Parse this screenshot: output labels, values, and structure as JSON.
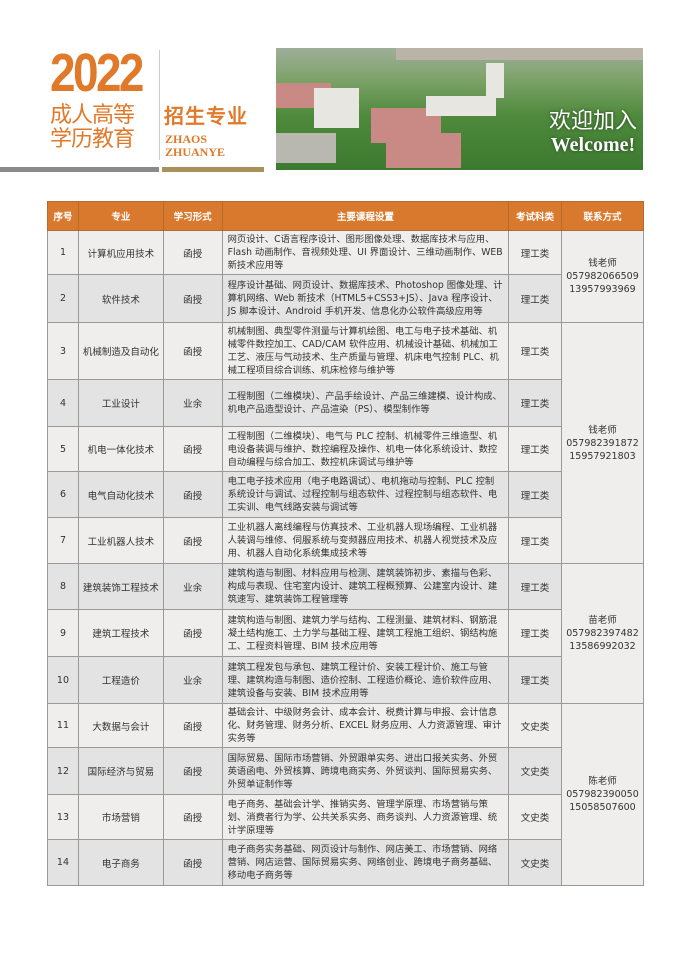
{
  "header": {
    "year": "2022",
    "title_line1": "成人高等",
    "title_line2": "学历教育",
    "subtitle": "招生专业",
    "pinyin_line1": "ZHAOS",
    "pinyin_line2": "ZHUANYE",
    "welcome_cn": "欢迎加入",
    "welcome_en": "Welcome!"
  },
  "colors": {
    "accent": "#d9792e",
    "title": "#e07a2a",
    "bar_gray": "#8a8a8a",
    "bar_gold": "#a8925a"
  },
  "table": {
    "headers": [
      "序号",
      "专业",
      "学习形式",
      "主要课程设置",
      "考试科类",
      "联系方式"
    ],
    "rows": [
      {
        "no": "1",
        "major": "计算机应用技术",
        "mode": "函授",
        "courses": "网页设计、C语言程序设计、图形图像处理、数据库技术与应用、Flash 动画制作、音视频处理、UI 界面设计、三维动画制作、WEB 新技术应用等",
        "category": "理工类"
      },
      {
        "no": "2",
        "major": "软件技术",
        "mode": "函授",
        "courses": "程序设计基础、网页设计、数据库技术、Photoshop 图像处理、计算机网络、Web 新技术（HTML5+CSS3+JS）、Java 程序设计、JS 脚本设计、Android 手机开发、信息化办公软件高级应用等",
        "category": "理工类"
      },
      {
        "no": "3",
        "major": "机械制造及自动化",
        "mode": "函授",
        "courses": "机械制图、典型零件测量与计算机绘图、电工与电子技术基础、机械零件数控加工、CAD/CAM 软件应用、机械设计基础、机械加工工艺、液压与气动技术、生产质量与管理、机床电气控制 PLC、机械工程项目综合训练、机床检修与维护等",
        "category": "理工类"
      },
      {
        "no": "4",
        "major": "工业设计",
        "mode": "业余",
        "courses": "工程制图（二维模块）、产品手绘设计、产品三维建模、设计构成、机电产品造型设计、产品渲染（PS）、模型制作等",
        "category": "理工类"
      },
      {
        "no": "5",
        "major": "机电一体化技术",
        "mode": "函授",
        "courses": "工程制图（二维模块）、电气与 PLC 控制、机械零件三维造型、机电设备装调与维护、数控编程及操作、机电一体化系统设计、数控自动编程与综合加工、数控机床调试与维护等",
        "category": "理工类"
      },
      {
        "no": "6",
        "major": "电气自动化技术",
        "mode": "函授",
        "courses": "电工电子技术应用（电子电路调试）、电机拖动与控制、PLC 控制系统设计与调试、过程控制与组态软件、过程控制与组态软件、电工实训、电气线路安装与调试等",
        "category": "理工类"
      },
      {
        "no": "7",
        "major": "工业机器人技术",
        "mode": "函授",
        "courses": "工业机器人离线编程与仿真技术、工业机器人现场编程、工业机器人装调与维修、伺服系统与变频器应用技术、机器人视觉技术及应用、机器人自动化系统集成技术等",
        "category": "理工类"
      },
      {
        "no": "8",
        "major": "建筑装饰工程技术",
        "mode": "业余",
        "courses": "建筑构造与制图、材料应用与检测、建筑装饰初步、素描与色彩、构成与表现、住宅室内设计、建筑工程概预算、公建室内设计、建筑速写、建筑装饰工程管理等",
        "category": "理工类"
      },
      {
        "no": "9",
        "major": "建筑工程技术",
        "mode": "函授",
        "courses": "建筑构造与制图、建筑力学与结构、工程测量、建筑材料、钢筋混凝土结构施工、土力学与基础工程、建筑工程施工组织、钢结构施工、工程资料管理、BIM 技术应用等",
        "category": "理工类"
      },
      {
        "no": "10",
        "major": "工程造价",
        "mode": "业余",
        "courses": "建筑工程发包与承包、建筑工程计价、安装工程计价、施工与管理、建筑构造与制图、造价控制、工程造价概论、造价软件应用、建筑设备与安装、BIM 技术应用等",
        "category": "理工类"
      },
      {
        "no": "11",
        "major": "大数据与会计",
        "mode": "函授",
        "courses": "基础会计、中级财务会计、成本会计、税费计算与申报、会计信息化、财务管理、财务分析、EXCEL 财务应用、人力资源管理、审计实务等",
        "category": "文史类"
      },
      {
        "no": "12",
        "major": "国际经济与贸易",
        "mode": "函授",
        "courses": "国际贸易、国际市场营销、外贸跟单实务、进出口报关实务、外贸英语函电、外贸核算、跨境电商实务、外贸谈判、国际贸易实务、外贸单证制作等",
        "category": "文史类"
      },
      {
        "no": "13",
        "major": "市场营销",
        "mode": "函授",
        "courses": "电子商务、基础会计学、推销实务、管理学原理、市场营销与策划、消费者行为学、公共关系实务、商务谈判、人力资源管理、统计学原理等",
        "category": "文史类"
      },
      {
        "no": "14",
        "major": "电子商务",
        "mode": "函授",
        "courses": "电子商务实务基础、网页设计与制作、网店美工、市场营销、网络营销、网店运营、国际贸易实务、网络创业、跨境电子商务基础、移动电子商务等",
        "category": "文史类"
      }
    ],
    "contacts": [
      {
        "name": "钱老师",
        "phone": "057982066509",
        "mobile": "13957993969"
      },
      {
        "name": "钱老师",
        "phone": "057982391872",
        "mobile": "15957921803"
      },
      {
        "name": "苗老师",
        "phone": "057982397482",
        "mobile": "13586992032"
      },
      {
        "name": "陈老师",
        "phone": "057982390050",
        "mobile": "15058507600"
      }
    ]
  }
}
